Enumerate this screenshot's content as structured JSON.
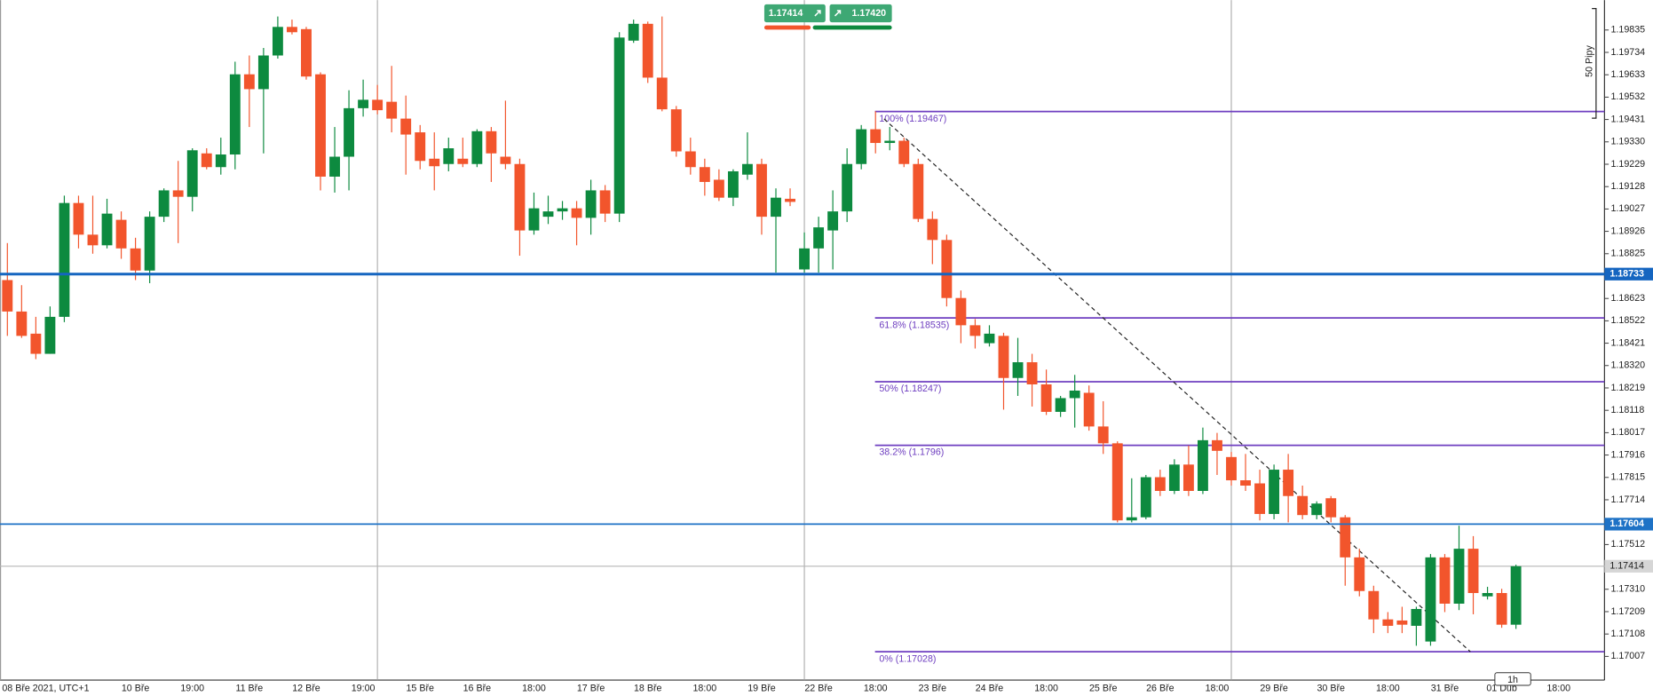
{
  "chart_data": {
    "type": "candlestick",
    "categories": [
      "08 Bře 2021, UTC+1",
      null,
      null,
      null,
      null,
      null,
      null,
      null,
      null,
      "10 Bře",
      null,
      null,
      null,
      "19:00",
      null,
      null,
      null,
      "11 Bře",
      null,
      null,
      null,
      "12 Bře",
      null,
      null,
      null,
      "19:00",
      null,
      null,
      null,
      "15 Bře",
      null,
      null,
      null,
      "16 Bře",
      null,
      null,
      null,
      "18:00",
      null,
      null,
      null,
      "17 Bře",
      null,
      null,
      null,
      "18 Bře",
      null,
      null,
      null,
      "18:00",
      null,
      null,
      null,
      "19 Bře",
      null,
      null,
      null,
      "22 Bře",
      null,
      null,
      null,
      "18:00",
      null,
      null,
      null,
      "23 Bře",
      null,
      null,
      null,
      "24 Bře",
      null,
      null,
      null,
      "18:00",
      null,
      null,
      null,
      "25 Bře",
      null,
      null,
      null,
      "26 Bře",
      null,
      null,
      null,
      "18:00",
      null,
      null,
      null,
      "29 Bře",
      null,
      null,
      null,
      "30 Bře",
      null,
      null,
      null,
      "18:00",
      null,
      null,
      null,
      "31 Bře",
      null,
      null,
      null,
      "01 Dub",
      null,
      null,
      null,
      "18:00"
    ],
    "open": [
      1.18706,
      1.18564,
      1.18464,
      1.18373,
      1.1854,
      1.19054,
      1.18911,
      1.18863,
      1.18978,
      1.18849,
      1.18749,
      1.18992,
      1.19111,
      1.19082,
      1.19278,
      1.19216,
      1.19273,
      1.19635,
      1.19568,
      1.1972,
      1.19849,
      1.19839,
      1.19635,
      1.19173,
      1.19263,
      1.19482,
      1.1952,
      1.19511,
      1.19435,
      1.19373,
      1.19254,
      1.1923,
      1.19254,
      1.1923,
      1.19378,
      1.19263,
      1.1923,
      1.1893,
      1.18992,
      1.19016,
      1.1903,
      1.18987,
      1.19111,
      1.19006,
      1.19787,
      1.19863,
      1.1962,
      1.19477,
      1.19287,
      1.19216,
      1.19159,
      1.19078,
      1.19182,
      1.1923,
      1.18992,
      1.19073,
      1.18754,
      1.18849,
      1.1893,
      1.19016,
      1.1923,
      1.19387,
      1.19325,
      1.19335,
      1.1923,
      1.18982,
      1.18887,
      1.18625,
      1.18502,
      1.18421,
      1.18454,
      1.18264,
      1.18335,
      1.18235,
      1.18111,
      1.18173,
      1.18197,
      1.18045,
      1.17969,
      1.17621,
      1.17635,
      1.17816,
      1.17754,
      1.17873,
      1.17754,
      1.17983,
      1.17907,
      1.17802,
      1.17788,
      1.1765,
      1.1785,
      1.17731,
      1.17645,
      1.17721,
      1.17635,
      1.17454,
      1.17302,
      1.17174,
      1.17169,
      1.17145,
      1.17074,
      1.17454,
      1.17245,
      1.17493,
      1.17278,
      1.17293,
      1.1715,
      null,
      null,
      null
    ],
    "high": [
      1.18873,
      1.18683,
      1.1854,
      1.18587,
      1.19087,
      1.19087,
      1.19087,
      1.19073,
      1.19016,
      1.18897,
      1.19016,
      1.1912,
      1.19244,
      1.19301,
      1.19301,
      1.19349,
      1.19692,
      1.1972,
      1.19754,
      1.19896,
      1.19882,
      1.19849,
      1.19644,
      1.19397,
      1.19563,
      1.19611,
      1.19587,
      1.19673,
      1.19539,
      1.19406,
      1.19373,
      1.19349,
      1.19349,
      1.19387,
      1.19397,
      1.19516,
      1.19254,
      1.19101,
      1.19087,
      1.19063,
      1.19063,
      1.19159,
      1.19135,
      1.19825,
      1.19882,
      1.19873,
      1.19896,
      1.19492,
      1.19349,
      1.19254,
      1.19206,
      1.19206,
      1.19373,
      1.19254,
      1.1912,
      1.1912,
      1.18921,
      1.18992,
      1.19111,
      1.19301,
      1.19406,
      1.19468,
      1.19397,
      1.19349,
      1.19254,
      1.19016,
      1.18911,
      1.18659,
      1.1853,
      1.18502,
      1.18468,
      1.18445,
      1.18373,
      1.18302,
      1.18183,
      1.18278,
      1.1823,
      1.18159,
      1.17978,
      1.17811,
      1.17826,
      1.1785,
      1.17897,
      1.17959,
      1.1804,
      1.18016,
      1.1793,
      1.17921,
      1.1785,
      1.17873,
      1.17921,
      1.17778,
      1.17707,
      1.17731,
      1.17645,
      1.17493,
      1.17326,
      1.17207,
      1.17231,
      1.17231,
      1.17469,
      1.17469,
      1.17597,
      1.1755,
      1.17321,
      1.17312,
      1.17421,
      null,
      null,
      null
    ],
    "low": [
      1.18454,
      1.18445,
      1.18349,
      1.18373,
      1.18516,
      1.18849,
      1.18825,
      1.18849,
      1.18802,
      1.18706,
      1.18692,
      1.18968,
      1.18873,
      1.19016,
      1.19206,
      1.19182,
      1.19206,
      1.19397,
      1.19278,
      1.19706,
      1.19815,
      1.19611,
      1.19111,
      1.19101,
      1.19111,
      1.19444,
      1.19454,
      1.19373,
      1.19182,
      1.19206,
      1.19111,
      1.19197,
      1.19216,
      1.19216,
      1.19149,
      1.19206,
      1.18816,
      1.18911,
      1.18959,
      1.18978,
      1.18863,
      1.18911,
      1.18968,
      1.18968,
      1.19777,
      1.19596,
      1.19468,
      1.19263,
      1.19182,
      1.19087,
      1.19063,
      1.1904,
      1.19159,
      1.18911,
      1.1874,
      1.1904,
      1.1874,
      1.1874,
      1.18754,
      1.18968,
      1.19206,
      1.19278,
      1.19292,
      1.19216,
      1.18968,
      1.18778,
      1.18587,
      1.18421,
      1.18397,
      1.18406,
      1.18121,
      1.18183,
      1.18135,
      1.18097,
      1.18088,
      1.1804,
      1.18026,
      1.17921,
      1.17612,
      1.17612,
      1.17626,
      1.17731,
      1.1774,
      1.17731,
      1.1774,
      1.17826,
      1.17778,
      1.17754,
      1.17621,
      1.17626,
      1.17612,
      1.17626,
      1.17626,
      1.17612,
      1.17326,
      1.17278,
      1.17112,
      1.17112,
      1.17112,
      1.17055,
      1.17055,
      1.17207,
      1.17216,
      1.17197,
      1.17264,
      1.17136,
      1.17131,
      null,
      null,
      null
    ],
    "close": [
      1.18564,
      1.18454,
      1.18373,
      1.1854,
      1.19054,
      1.18911,
      1.18863,
      1.19006,
      1.18849,
      1.18749,
      1.18992,
      1.19111,
      1.19082,
      1.19292,
      1.19216,
      1.19273,
      1.19635,
      1.19568,
      1.1972,
      1.19849,
      1.19825,
      1.19625,
      1.19173,
      1.19263,
      1.19482,
      1.1952,
      1.19473,
      1.19435,
      1.19363,
      1.19244,
      1.1922,
      1.19301,
      1.1923,
      1.19378,
      1.19278,
      1.1923,
      1.1893,
      1.1903,
      1.19016,
      1.1903,
      1.18987,
      1.19111,
      1.19006,
      1.19801,
      1.19863,
      1.1962,
      1.19477,
      1.19287,
      1.19216,
      1.19149,
      1.19078,
      1.19197,
      1.1923,
      1.18992,
      1.19078,
      1.19059,
      1.18849,
      1.18944,
      1.19016,
      1.1923,
      1.19387,
      1.19325,
      1.19335,
      1.1923,
      1.18982,
      1.18887,
      1.18625,
      1.18502,
      1.18454,
      1.18464,
      1.18264,
      1.18335,
      1.18235,
      1.18111,
      1.18173,
      1.18207,
      1.18045,
      1.17969,
      1.17621,
      1.17635,
      1.17816,
      1.17754,
      1.17873,
      1.17754,
      1.17983,
      1.17935,
      1.17802,
      1.17778,
      1.1765,
      1.1785,
      1.17731,
      1.17645,
      1.17697,
      1.17635,
      1.17454,
      1.17302,
      1.17174,
      1.17145,
      1.1715,
      1.17221,
      1.17454,
      1.17245,
      1.17493,
      1.17293,
      1.17293,
      1.1715,
      1.17414,
      null,
      null,
      null
    ],
    "up_color": "#0d8a3f",
    "down_color": "#f2552c",
    "ylim": [
      1.169,
      1.1997
    ],
    "yticks": [
      1.19835,
      1.19734,
      1.19633,
      1.19532,
      1.19431,
      {
        "value": 1.1933,
        "label": "1.19330"
      },
      1.19229,
      1.19128,
      1.19027,
      1.18926,
      1.18825,
      1.18623,
      1.18522,
      1.18421,
      {
        "value": 1.1832,
        "label": "1.18320"
      },
      1.18219,
      1.18118,
      1.18017,
      1.17916,
      1.17815,
      1.17714,
      1.17512,
      {
        "value": 1.1731,
        "label": "1.17310"
      },
      1.17209,
      1.17108,
      1.17007
    ],
    "price_lines": [
      {
        "value": 1.18733,
        "color": "#1565c0"
      },
      {
        "value": 1.17604,
        "color": "#1e72c6"
      }
    ],
    "current_price": 1.17414,
    "fib_levels": [
      {
        "label": "100% (1.19467)",
        "value": 1.19467
      },
      {
        "label": "61.8% (1.18535)",
        "value": 1.18535
      },
      {
        "label": "50% (1.18247)",
        "value": 1.18247
      },
      {
        "label": "38.2% (1.1796)",
        "value": 1.1796
      },
      {
        "label": "0% (1.17028)",
        "value": 1.17028
      }
    ],
    "fib_color": "#6f3fc0",
    "bid": 1.17414,
    "ask": {
      "value": 1.1742,
      "label": "1.17420"
    },
    "ruler_label": "50 Pipy",
    "timeframe": "1h"
  }
}
